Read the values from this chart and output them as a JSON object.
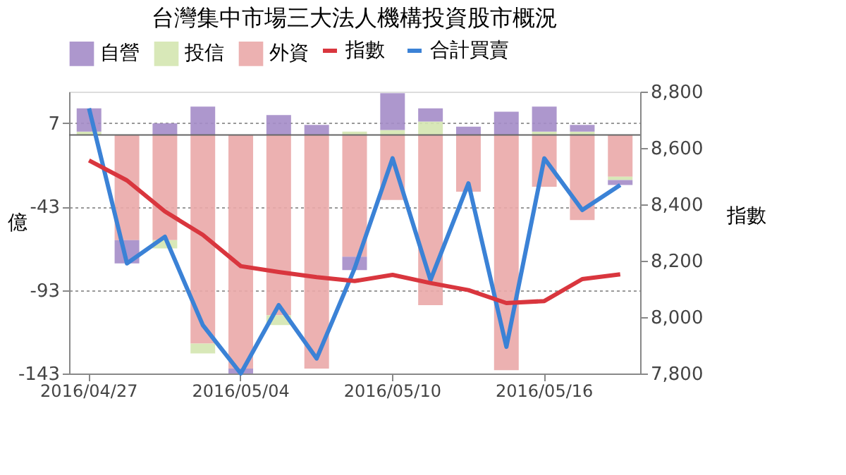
{
  "chart_data": {
    "type": "bar",
    "title": "台灣集中市場三大法人機構投資股市概況",
    "ylabel": "億",
    "y2label": "指數",
    "categories": [
      "2016/04/27",
      null,
      null,
      null,
      "2016/05/04",
      null,
      null,
      null,
      "2016/05/10",
      null,
      null,
      null,
      "2016/05/16",
      null,
      null
    ],
    "stacked": true,
    "series": [
      {
        "name": "指數",
        "type": "line",
        "axis": "y2",
        "color": "#d9363e",
        "values": [
          8556,
          8485,
          8375,
          8292,
          8181,
          8160,
          8142,
          8128,
          8150,
          8121,
          8096,
          8050,
          8057,
          8135,
          8152
        ]
      },
      {
        "name": "合計買賣",
        "type": "line",
        "color": "#3b82d6",
        "values": [
          16,
          -77,
          -61,
          -114,
          -143,
          -102,
          -134,
          -80,
          -14,
          -87,
          -29,
          -127,
          -14,
          -45,
          -30
        ]
      },
      {
        "name": "外資",
        "color": "#eaa9a9",
        "values": [
          0,
          -63,
          -63,
          -125,
          -140,
          -108,
          -140,
          -73,
          -39,
          -102,
          -34,
          -141,
          -31,
          -51,
          -25
        ]
      },
      {
        "name": "投信",
        "color": "#d4e6b0",
        "values": [
          2,
          0,
          -5,
          -6,
          0,
          -6,
          0,
          2,
          3,
          8,
          0,
          0,
          2,
          2,
          -2
        ]
      },
      {
        "name": "自營",
        "color": "#a48cc8",
        "values": [
          14,
          -14,
          7,
          17,
          -3,
          12,
          6,
          -8,
          22,
          8,
          5,
          14,
          15,
          4,
          -3
        ]
      }
    ],
    "ylim": [
      -143,
      26
    ],
    "yticks": [
      7,
      -43,
      -93,
      -143
    ],
    "y2lim": [
      7800,
      8800
    ],
    "y2ticks": [
      {
        "value": 7800,
        "label": "7,800"
      },
      {
        "value": 8000,
        "label": "8,000"
      },
      {
        "value": 8200,
        "label": "8,200"
      },
      {
        "value": 8400,
        "label": "8,400"
      },
      {
        "value": 8600,
        "label": "8,600"
      },
      {
        "value": 8800,
        "label": "8,800"
      }
    ],
    "ref_lines": [
      {
        "axis": "y",
        "value": 0,
        "color": "#666666"
      }
    ],
    "grid": "y",
    "legend": "top"
  }
}
